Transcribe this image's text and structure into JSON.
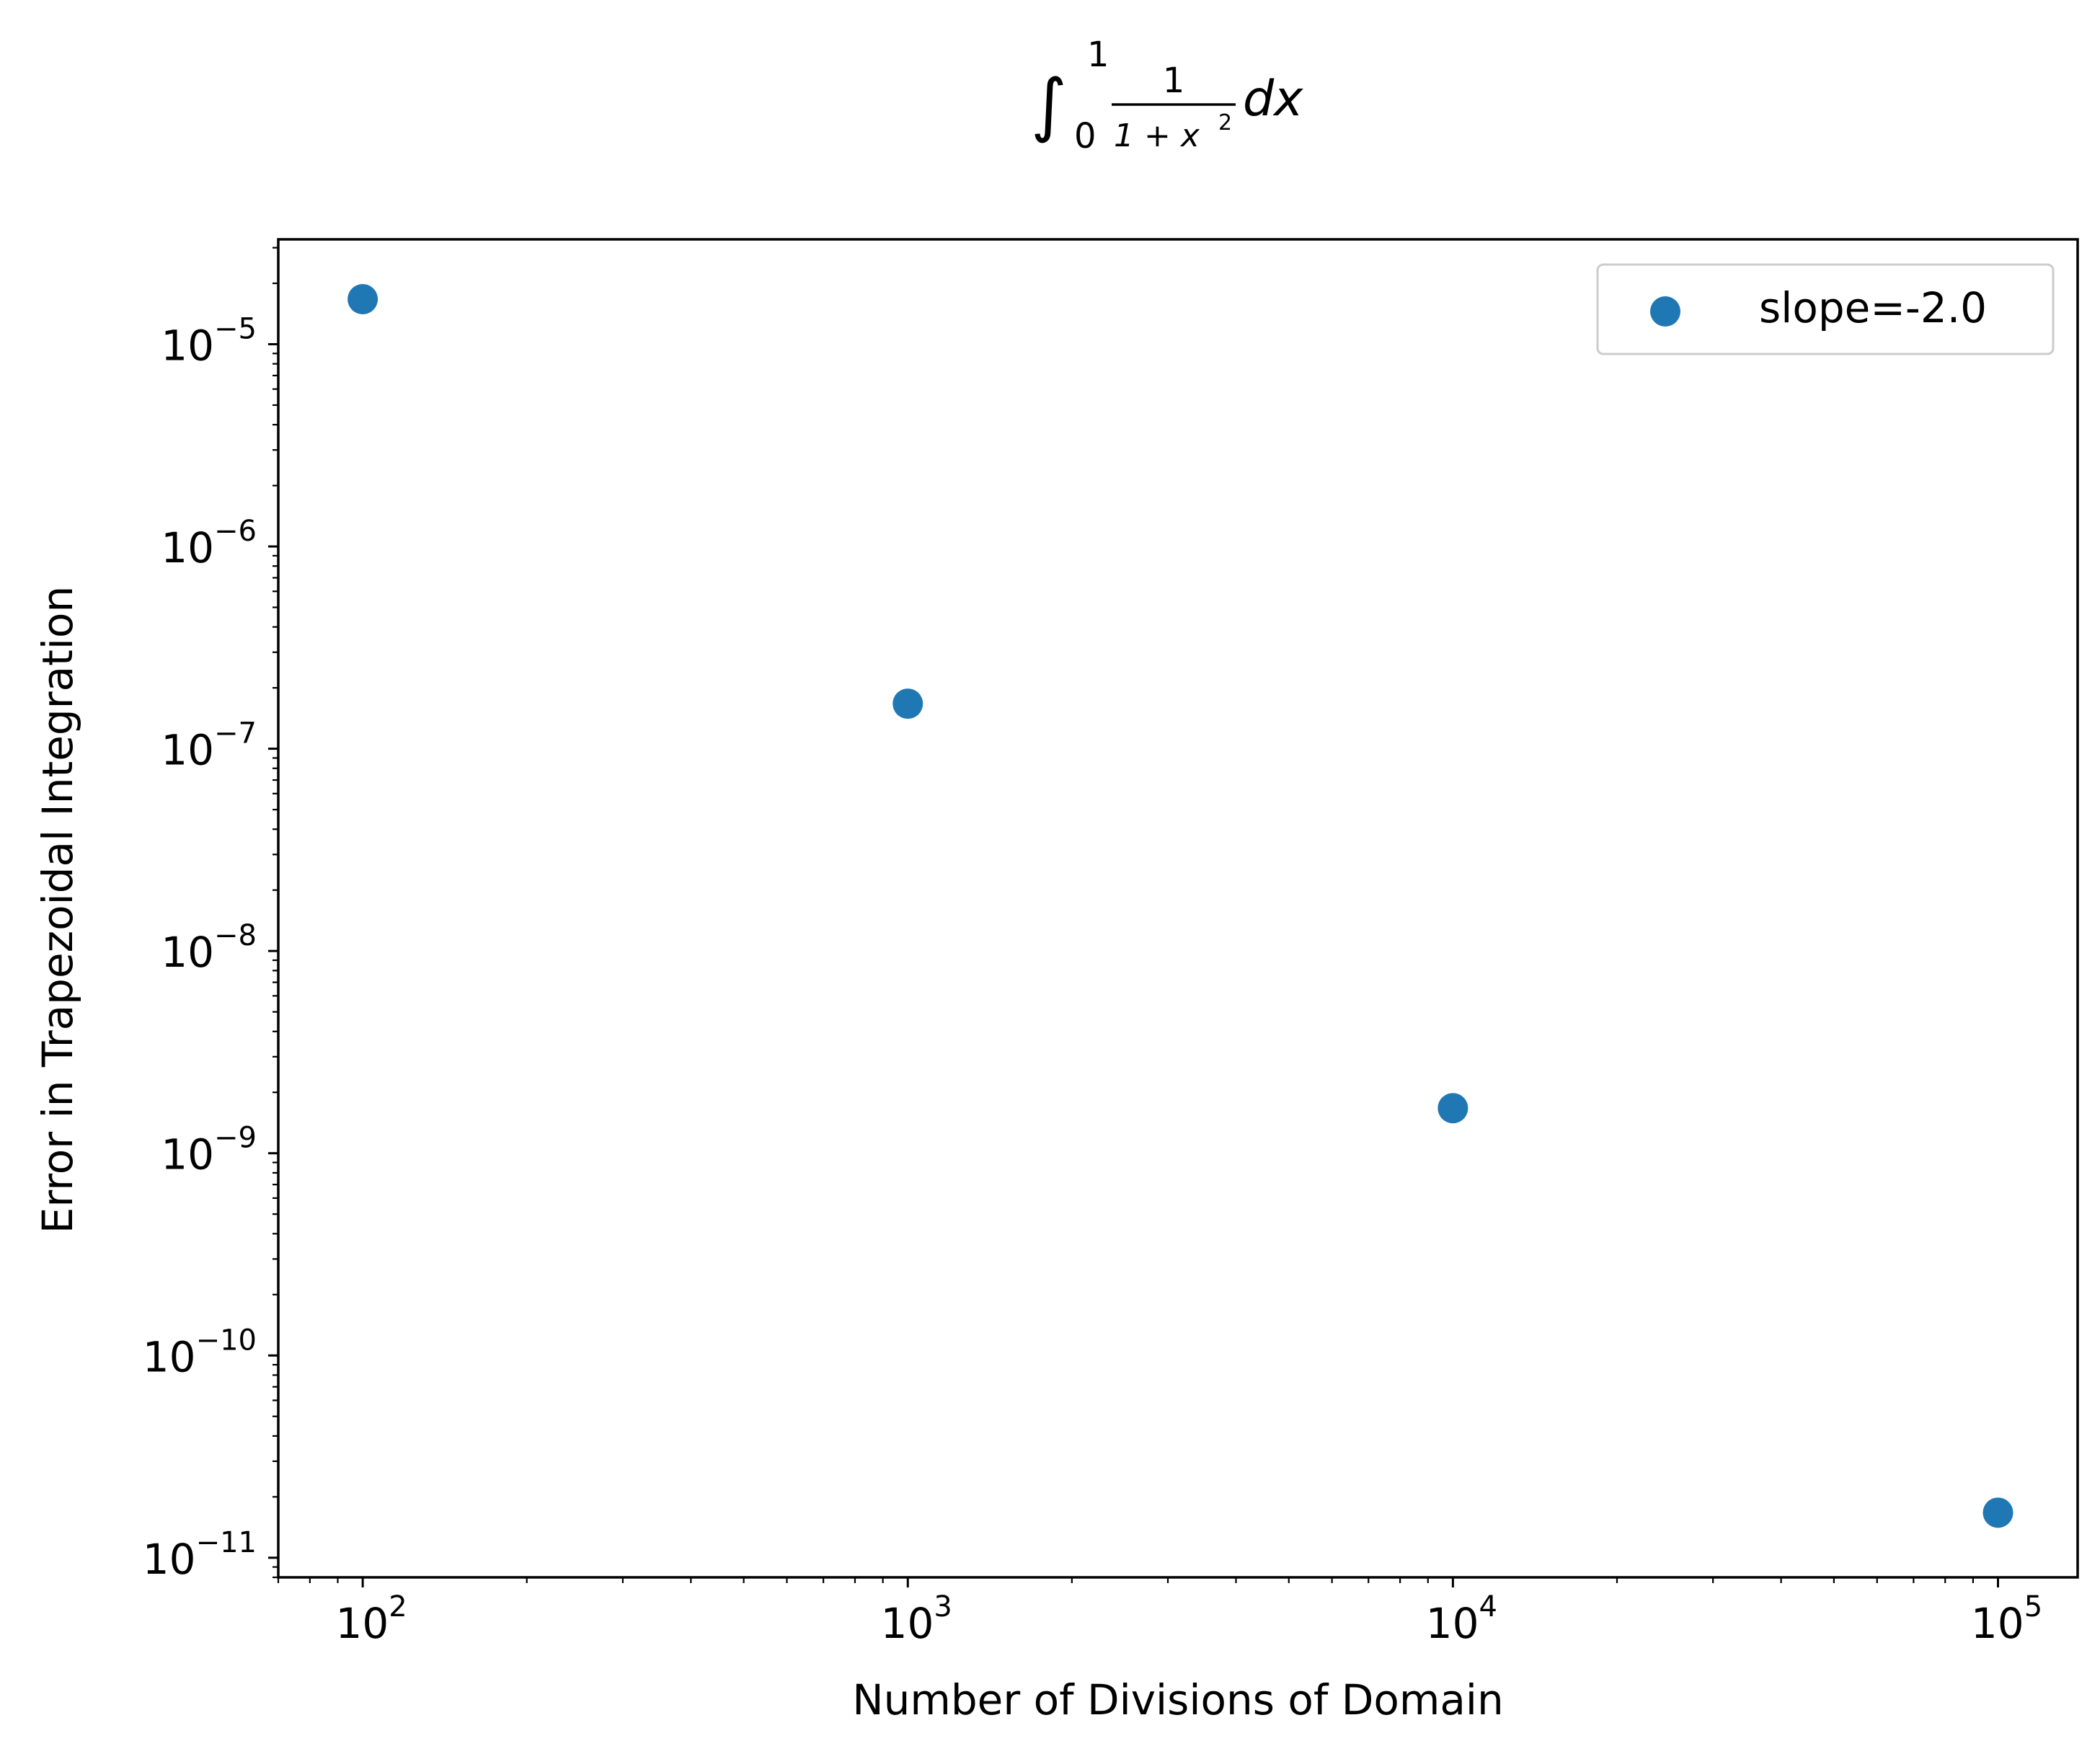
{
  "chart_data": {
    "type": "scatter",
    "title": {
      "integral_sign": "∫",
      "upper_limit": "1",
      "lower_limit": "0",
      "numerator": "1",
      "denominator_base": "1 + x",
      "denominator_exponent": "2",
      "differential": "dx"
    },
    "xlabel": "Number of Divisions of Domain",
    "ylabel": "Error in Trapezoidal Integration",
    "xscale": "log",
    "yscale": "log",
    "xlim": [
      70,
      140000
    ],
    "ylim": [
      8e-12,
      3.3e-05
    ],
    "x_ticks": [
      {
        "value": 100,
        "base": "10",
        "exp": "2"
      },
      {
        "value": 1000,
        "base": "10",
        "exp": "3"
      },
      {
        "value": 10000,
        "base": "10",
        "exp": "4"
      },
      {
        "value": 100000,
        "base": "10",
        "exp": "5"
      }
    ],
    "y_ticks": [
      {
        "value": 1e-05,
        "base": "10",
        "exp": "−5"
      },
      {
        "value": 1e-06,
        "base": "10",
        "exp": "−6"
      },
      {
        "value": 1e-07,
        "base": "10",
        "exp": "−7"
      },
      {
        "value": 1e-08,
        "base": "10",
        "exp": "−8"
      },
      {
        "value": 1e-09,
        "base": "10",
        "exp": "−9"
      },
      {
        "value": 1e-10,
        "base": "10",
        "exp": "−10"
      },
      {
        "value": 1e-11,
        "base": "10",
        "exp": "−11"
      }
    ],
    "grid": false,
    "legend_position": "top-right",
    "series": [
      {
        "name": "slope=-2.0",
        "color": "#1f77b4",
        "x": [
          100,
          1000,
          10000,
          100000
        ],
        "y": [
          1.67e-05,
          1.67e-07,
          1.67e-09,
          1.67e-11
        ]
      }
    ]
  }
}
